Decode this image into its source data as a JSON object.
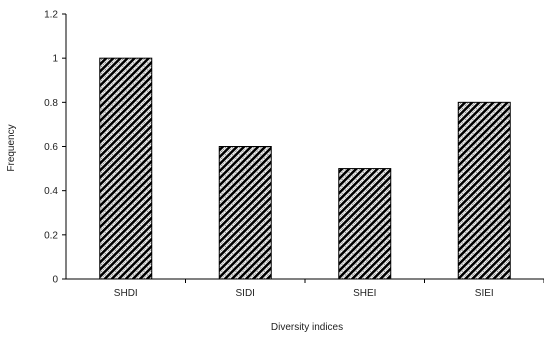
{
  "chart_data": {
    "type": "bar",
    "title": "",
    "xlabel": "Diversity indices",
    "ylabel": "Frequency",
    "categories": [
      "SHDI",
      "SIDI",
      "SHEI",
      "SIEI"
    ],
    "values": [
      1.0,
      0.6,
      0.5,
      0.8
    ],
    "ylim": [
      0,
      1.2
    ],
    "yticks": [
      "0",
      "0.2",
      "0.4",
      "0.6",
      "0.8",
      "1",
      "1.2"
    ],
    "grid": false,
    "legend": "none",
    "bar_color": "#000000",
    "bar_pattern": "diagonal-hatch"
  }
}
